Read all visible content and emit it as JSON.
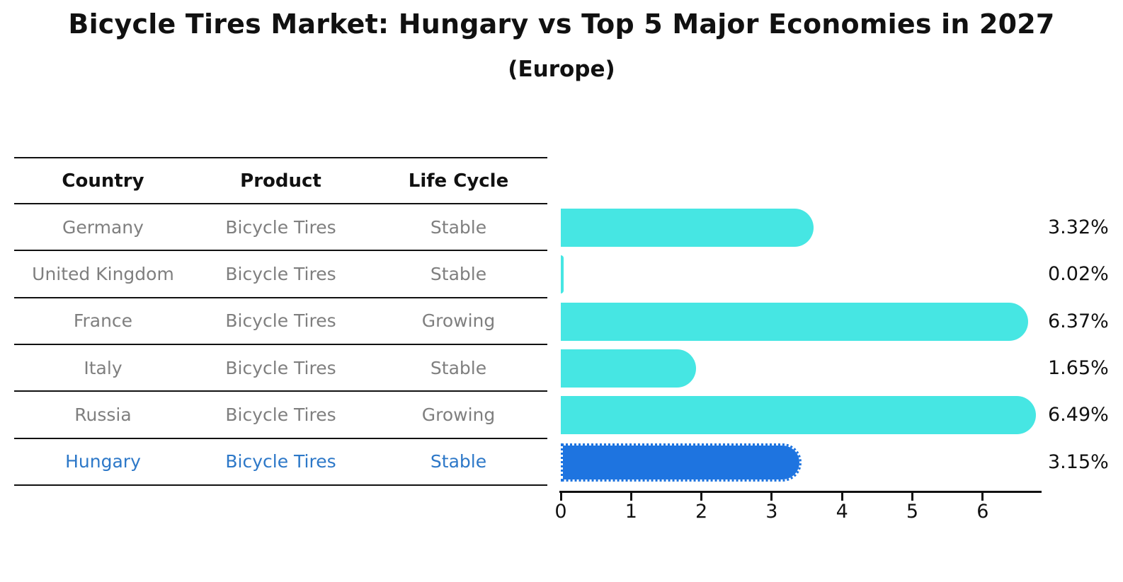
{
  "title": "Bicycle Tires Market: Hungary vs Top 5 Major Economies in 2027",
  "subtitle": "(Europe)",
  "table": {
    "headers": [
      "Country",
      "Product",
      "Life Cycle"
    ],
    "rows": [
      {
        "country": "Germany",
        "product": "Bicycle Tires",
        "life_cycle": "Stable"
      },
      {
        "country": "United Kingdom",
        "product": "Bicycle Tires",
        "life_cycle": "Stable"
      },
      {
        "country": "France",
        "product": "Bicycle Tires",
        "life_cycle": "Growing"
      },
      {
        "country": "Italy",
        "product": "Bicycle Tires",
        "life_cycle": "Stable"
      },
      {
        "country": "Russia",
        "product": "Bicycle Tires",
        "life_cycle": "Growing"
      },
      {
        "country": "Hungary",
        "product": "Bicycle Tires",
        "life_cycle": "Stable"
      }
    ],
    "highlighted_country": "Hungary"
  },
  "chart_data": {
    "type": "bar",
    "orientation": "horizontal",
    "title": "Bicycle Tires Market: Hungary vs Top 5 Major Economies in 2027",
    "subtitle": "(Europe)",
    "categories": [
      "Germany",
      "United Kingdom",
      "France",
      "Italy",
      "Russia",
      "Hungary"
    ],
    "values": [
      3.32,
      0.02,
      6.37,
      1.65,
      6.49,
      3.15
    ],
    "value_labels": [
      "3.32%",
      "0.02%",
      "6.37%",
      "1.65%",
      "6.49%",
      "3.15%"
    ],
    "xlabel": "",
    "ylabel": "",
    "x_ticks": [
      "0",
      "1",
      "2",
      "3",
      "4",
      "5",
      "6"
    ],
    "xlim": [
      0,
      6.85
    ],
    "grid": false,
    "legend": false,
    "highlight_index": 5,
    "bar_color": "#46e6e3",
    "highlight_bar_color": "#1e74e0",
    "highlight_text_color": "#2d78c8",
    "row_text_color": "#7f7f7f"
  }
}
